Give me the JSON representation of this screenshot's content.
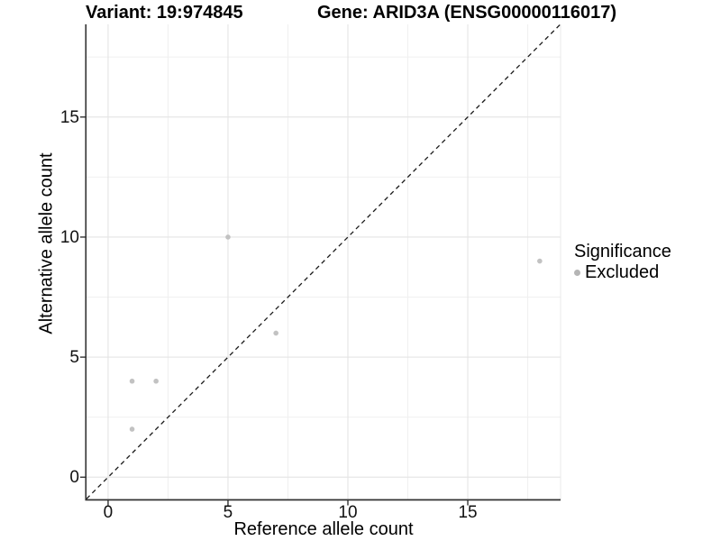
{
  "titles": {
    "variant": "Variant: 19:974845",
    "gene": "Gene: ARID3A (ENSG00000116017)"
  },
  "legend": {
    "title": "Significance",
    "items": [
      {
        "label": "Excluded",
        "color": "#b5b5b5"
      }
    ]
  },
  "colors": {
    "point": "#c2c2c2",
    "legend_dot": "#b5b5b5",
    "grid_major": "#e4e4e4",
    "grid_minor": "#f0f0f0",
    "panel_border": "#e9e9e9",
    "axis_line": "#333333",
    "reference_line": "#1a1a1a"
  },
  "chart_data": {
    "type": "scatter",
    "title": "Variant: 19:974845   Gene: ARID3A (ENSG00000116017)",
    "xlabel": "Reference allele count",
    "ylabel": "Alternative allele count",
    "xlim": [
      -0.9,
      18.87
    ],
    "ylim": [
      -0.93,
      18.86
    ],
    "x_ticks": [
      0,
      5,
      10,
      15
    ],
    "y_ticks": [
      0,
      5,
      10,
      15
    ],
    "x_minor_ticks": [
      2.5,
      7.5,
      12.5,
      17.5
    ],
    "y_minor_ticks": [
      2.5,
      7.5,
      12.5,
      17.5
    ],
    "grid": true,
    "legend_position": "right",
    "legend_title": "Significance",
    "series": [
      {
        "name": "Excluded",
        "color": "#c2c2c2",
        "points": [
          [
            1,
            2
          ],
          [
            1,
            4
          ],
          [
            2,
            4
          ],
          [
            5,
            10
          ],
          [
            7,
            6
          ],
          [
            18,
            9
          ]
        ]
      }
    ],
    "reference_line": {
      "kind": "identity",
      "equation": "y = x",
      "style": "dashed",
      "color": "#1a1a1a"
    }
  }
}
